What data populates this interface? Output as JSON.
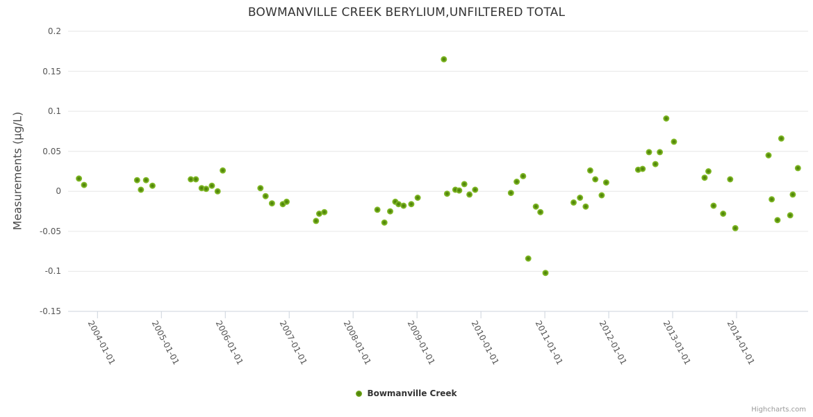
{
  "chart": {
    "title": "BOWMANVILLE CREEK BERYLIUM,UNFILTERED TOTAL",
    "credits": "Highcharts.com"
  },
  "legend": {
    "series_label": "Bowmanville Creek",
    "marker_color": "#7ab121"
  },
  "chart_data": {
    "type": "scatter",
    "title": "BOWMANVILLE CREEK BERYLIUM,UNFILTERED TOTAL",
    "xlabel": "",
    "ylabel": "Measurements (µg/L)",
    "x_unit": "decimal_year",
    "xlim": [
      2003.54,
      2015.12
    ],
    "ylim": [
      -0.15,
      0.2
    ],
    "grid": "horizontal",
    "legend_position": "bottom-center",
    "marker_color_outer": "#8bc334",
    "marker_color_center": "#4c7f08",
    "y_ticks": [
      {
        "v": 0.2,
        "label": "0.2"
      },
      {
        "v": 0.15,
        "label": "0.15"
      },
      {
        "v": 0.1,
        "label": "0.1"
      },
      {
        "v": 0.05,
        "label": "0.05"
      },
      {
        "v": 0,
        "label": "0"
      },
      {
        "v": -0.05,
        "label": "-0.05"
      },
      {
        "v": -0.1,
        "label": "-0.1"
      },
      {
        "v": -0.15,
        "label": "-0.15"
      }
    ],
    "x_ticks": [
      {
        "year": 2004,
        "label": "2004-01-01"
      },
      {
        "year": 2005,
        "label": "2005-01-01"
      },
      {
        "year": 2006,
        "label": "2006-01-01"
      },
      {
        "year": 2007,
        "label": "2007-01-01"
      },
      {
        "year": 2008,
        "label": "2008-01-01"
      },
      {
        "year": 2009,
        "label": "2009-01-01"
      },
      {
        "year": 2010,
        "label": "2010-01-01"
      },
      {
        "year": 2011,
        "label": "2011-01-01"
      },
      {
        "year": 2012,
        "label": "2012-01-01"
      },
      {
        "year": 2013,
        "label": "2013-01-01"
      },
      {
        "year": 2014,
        "label": "2014-01-01"
      }
    ],
    "series": [
      {
        "name": "Bowmanville Creek",
        "points": [
          [
            2003.71,
            0.016
          ],
          [
            2003.79,
            0.008
          ],
          [
            2004.62,
            0.014
          ],
          [
            2004.68,
            0.002
          ],
          [
            2004.76,
            0.014
          ],
          [
            2004.86,
            0.007
          ],
          [
            2005.46,
            0.015
          ],
          [
            2005.54,
            0.015
          ],
          [
            2005.63,
            0.004
          ],
          [
            2005.7,
            0.003
          ],
          [
            2005.79,
            0.007
          ],
          [
            2005.88,
            0.0
          ],
          [
            2005.96,
            0.026
          ],
          [
            2006.55,
            0.004
          ],
          [
            2006.63,
            -0.006
          ],
          [
            2006.73,
            -0.015
          ],
          [
            2006.9,
            -0.016
          ],
          [
            2006.96,
            -0.013
          ],
          [
            2007.42,
            -0.037
          ],
          [
            2007.47,
            -0.028
          ],
          [
            2007.55,
            -0.026
          ],
          [
            2008.38,
            -0.023
          ],
          [
            2008.49,
            -0.039
          ],
          [
            2008.58,
            -0.025
          ],
          [
            2008.66,
            -0.013
          ],
          [
            2008.71,
            -0.016
          ],
          [
            2008.79,
            -0.018
          ],
          [
            2008.91,
            -0.016
          ],
          [
            2009.01,
            -0.008
          ],
          [
            2009.42,
            0.165
          ],
          [
            2009.47,
            -0.003
          ],
          [
            2009.6,
            0.002
          ],
          [
            2009.66,
            0.001
          ],
          [
            2009.74,
            0.009
          ],
          [
            2009.82,
            -0.004
          ],
          [
            2009.91,
            0.002
          ],
          [
            2010.47,
            -0.002
          ],
          [
            2010.56,
            0.012
          ],
          [
            2010.66,
            0.019
          ],
          [
            2010.74,
            -0.084
          ],
          [
            2010.86,
            -0.019
          ],
          [
            2010.93,
            -0.026
          ],
          [
            2011.01,
            -0.102
          ],
          [
            2011.45,
            -0.014
          ],
          [
            2011.55,
            -0.008
          ],
          [
            2011.64,
            -0.019
          ],
          [
            2011.71,
            0.026
          ],
          [
            2011.79,
            0.015
          ],
          [
            2011.89,
            -0.005
          ],
          [
            2011.96,
            0.011
          ],
          [
            2012.46,
            0.027
          ],
          [
            2012.53,
            0.028
          ],
          [
            2012.63,
            0.049
          ],
          [
            2012.73,
            0.034
          ],
          [
            2012.8,
            0.049
          ],
          [
            2012.9,
            0.091
          ],
          [
            2013.02,
            0.062
          ],
          [
            2013.5,
            0.017
          ],
          [
            2013.56,
            0.025
          ],
          [
            2013.64,
            -0.018
          ],
          [
            2013.79,
            -0.028
          ],
          [
            2013.9,
            0.015
          ],
          [
            2013.98,
            -0.046
          ],
          [
            2014.5,
            0.045
          ],
          [
            2014.55,
            -0.01
          ],
          [
            2014.64,
            -0.036
          ],
          [
            2014.7,
            0.066
          ],
          [
            2014.84,
            -0.03
          ],
          [
            2014.88,
            -0.004
          ],
          [
            2014.96,
            0.029
          ]
        ]
      }
    ]
  }
}
